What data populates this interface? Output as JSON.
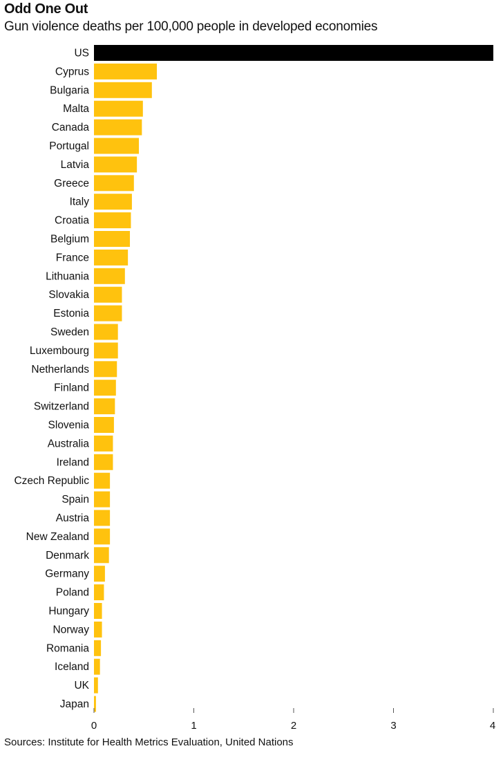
{
  "chart_data": {
    "type": "bar",
    "orientation": "horizontal",
    "title": "Odd One Out",
    "subtitle": "Gun violence deaths per 100,000 people in developed economies",
    "source": "Sources: Institute for Health Metrics Evaluation, United Nations",
    "xlim": [
      0,
      4
    ],
    "xticks": [
      "0",
      "1",
      "2",
      "3",
      "4"
    ],
    "colors": {
      "highlight": "#000000",
      "default": "#ffc20e"
    },
    "highlight": "US",
    "categories": [
      "US",
      "Cyprus",
      "Bulgaria",
      "Malta",
      "Canada",
      "Portugal",
      "Latvia",
      "Greece",
      "Italy",
      "Croatia",
      "Belgium",
      "France",
      "Lithuania",
      "Slovakia",
      "Estonia",
      "Sweden",
      "Luxembourg",
      "Netherlands",
      "Finland",
      "Switzerland",
      "Slovenia",
      "Australia",
      "Ireland",
      "Czech Republic",
      "Spain",
      "Austria",
      "New Zealand",
      "Denmark",
      "Germany",
      "Poland",
      "Hungary",
      "Norway",
      "Romania",
      "Iceland",
      "UK",
      "Japan"
    ],
    "values": [
      4.0,
      0.63,
      0.58,
      0.49,
      0.48,
      0.45,
      0.43,
      0.4,
      0.38,
      0.37,
      0.36,
      0.34,
      0.31,
      0.28,
      0.28,
      0.24,
      0.24,
      0.23,
      0.22,
      0.21,
      0.2,
      0.19,
      0.19,
      0.16,
      0.16,
      0.16,
      0.16,
      0.15,
      0.11,
      0.1,
      0.08,
      0.08,
      0.07,
      0.06,
      0.04,
      0.02
    ]
  }
}
